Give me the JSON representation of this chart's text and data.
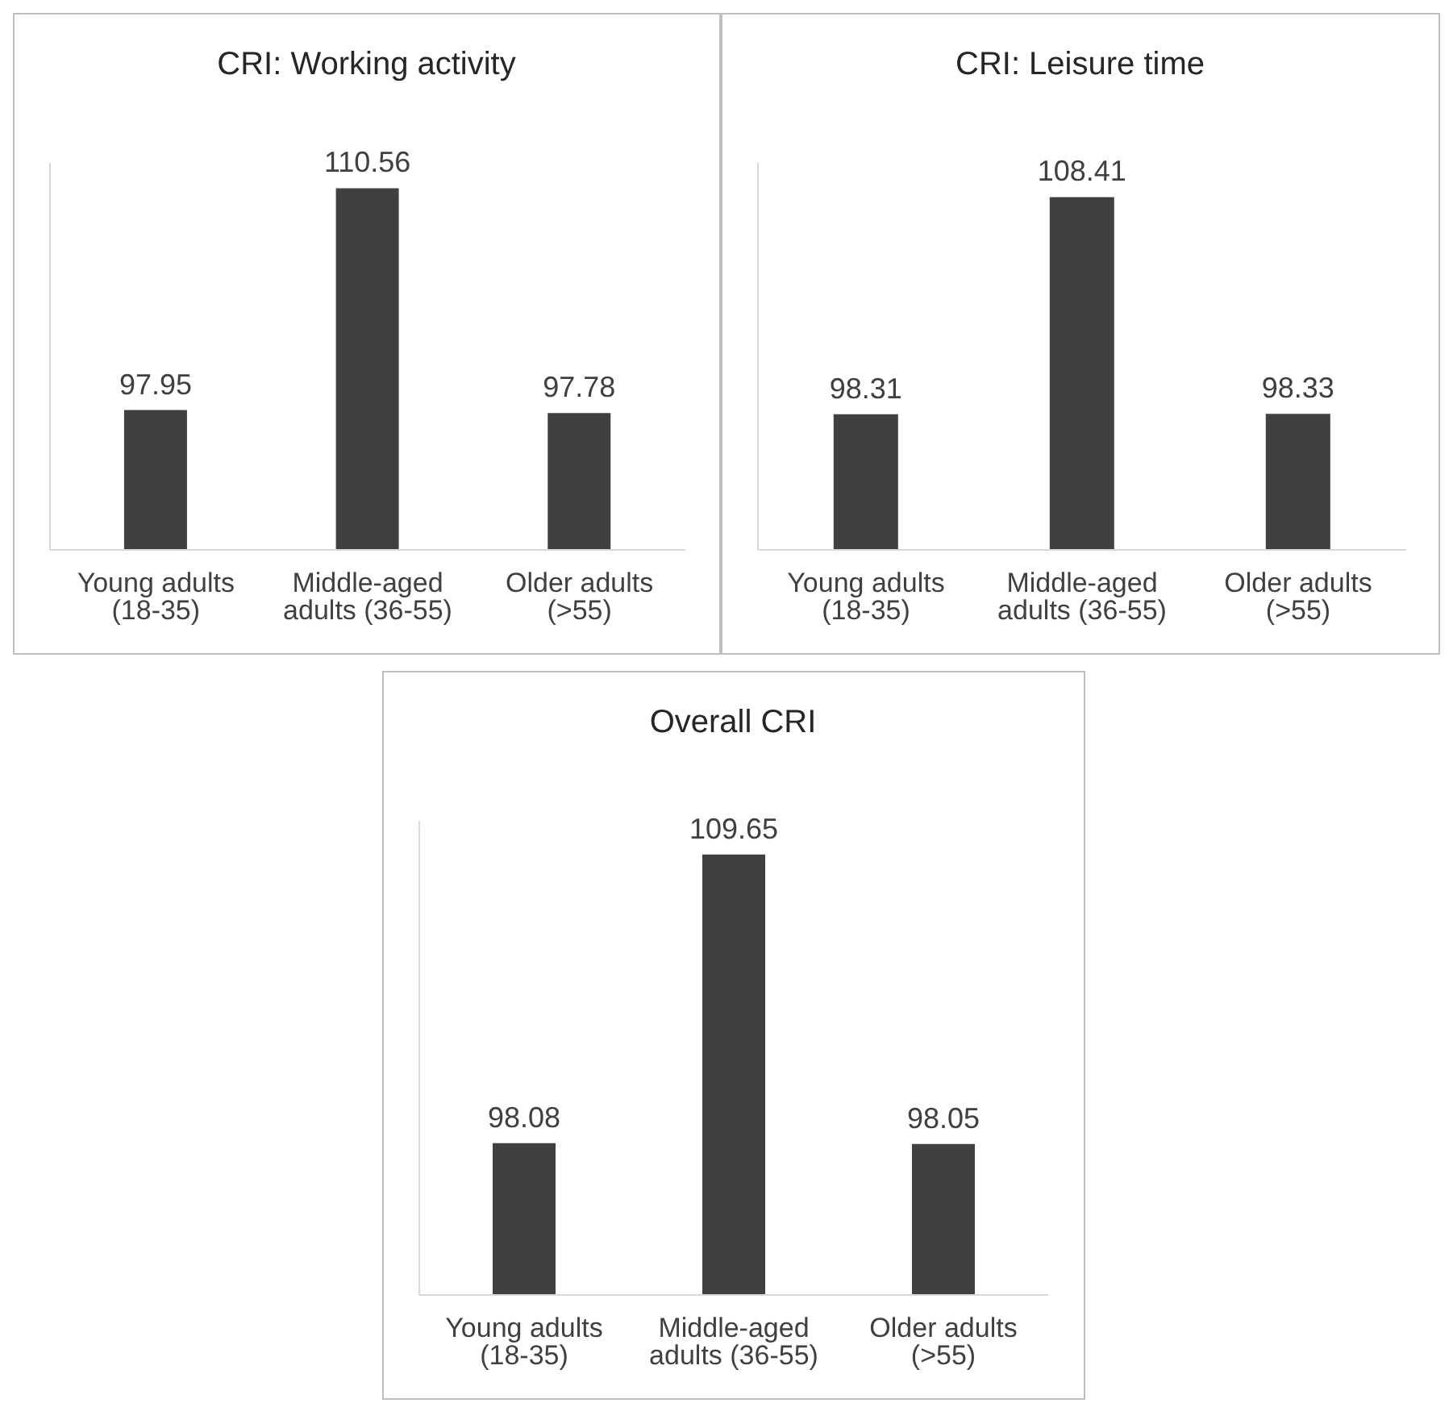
{
  "chart_data": [
    {
      "type": "bar",
      "title": "CRI: Working activity",
      "categories": [
        "Young adults (18-35)",
        "Middle-aged adults (36-55)",
        "Older adults (>55)"
      ],
      "values": [
        97.95,
        110.56,
        97.78
      ],
      "color": "#404040",
      "ylim": [
        90,
        112
      ],
      "data_labels": true,
      "tick_labels": "x"
    },
    {
      "type": "bar",
      "title": "CRI: Leisure time",
      "categories": [
        "Young adults (18-35)",
        "Middle-aged adults (36-55)",
        "Older adults (>55)"
      ],
      "values": [
        98.31,
        108.41,
        98.33
      ],
      "color": "#404040",
      "ylim": [
        92,
        110
      ],
      "data_labels": true,
      "tick_labels": "x"
    },
    {
      "type": "bar",
      "title": "Overall CRI",
      "categories": [
        "Young adults (18-35)",
        "Middle-aged adults (36-55)",
        "Older adults (>55)"
      ],
      "values": [
        98.08,
        109.65,
        98.05
      ],
      "color": "#404040",
      "ylim": [
        92,
        111
      ],
      "data_labels": true,
      "tick_labels": "x"
    }
  ]
}
